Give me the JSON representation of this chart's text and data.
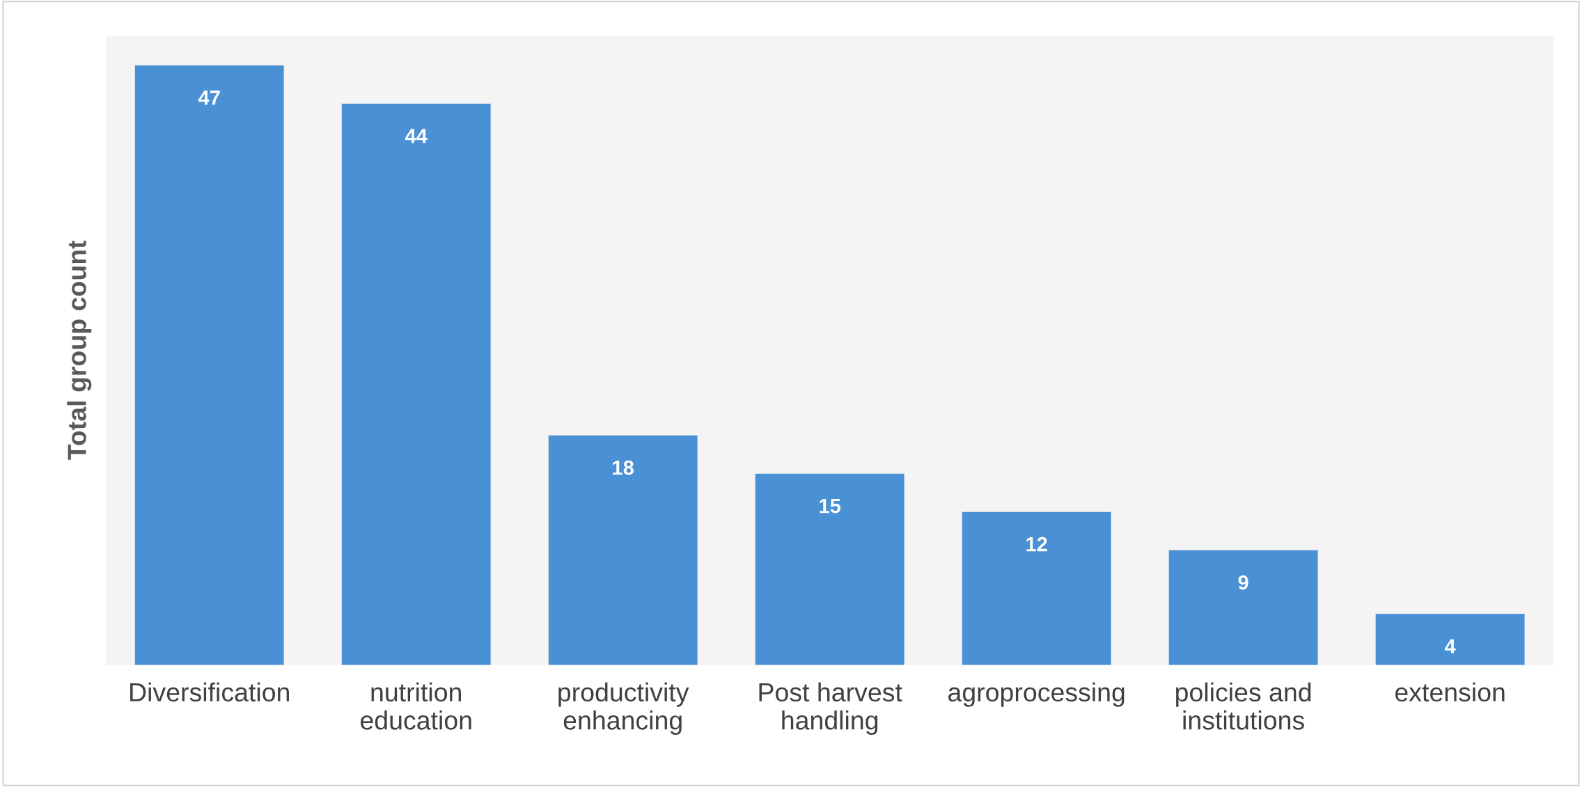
{
  "chart_data": {
    "type": "bar",
    "ylabel": "Total group count",
    "categories": [
      "Diversification",
      "nutrition education",
      "productivity enhancing",
      "Post harvest handling",
      "agroprocessing",
      "policies and institutions",
      "extension"
    ],
    "values": [
      47,
      44,
      18,
      15,
      12,
      9,
      4
    ],
    "color": "#4a90d4",
    "data_labels": true,
    "grid": false,
    "legend": false,
    "tick_labels": "x"
  }
}
